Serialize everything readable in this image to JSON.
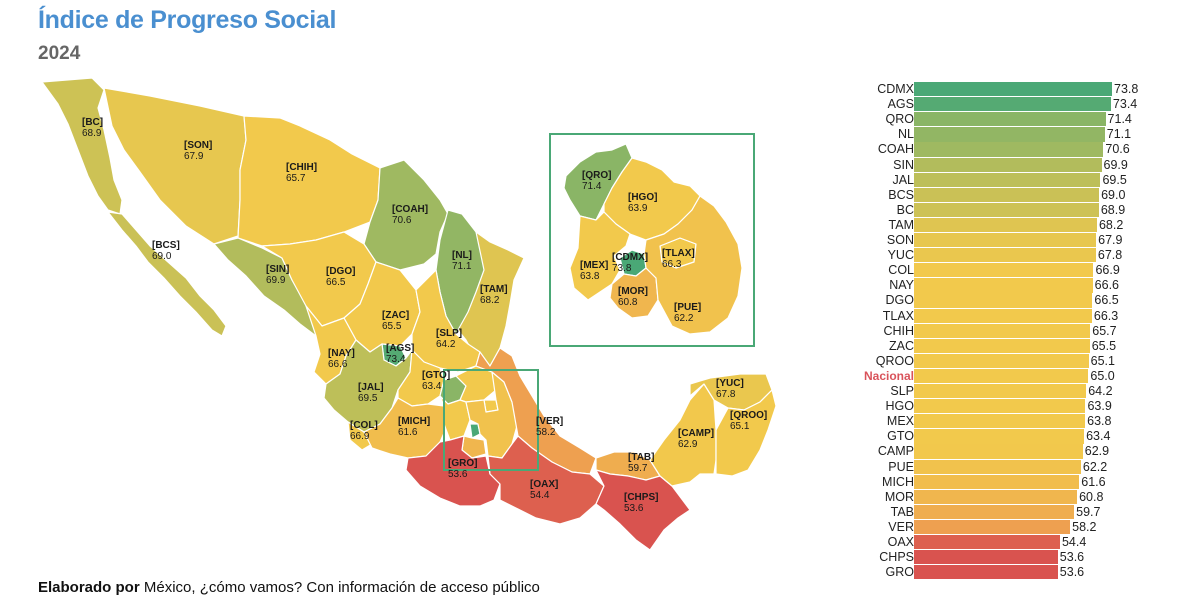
{
  "header": {
    "title": "Índice de Progreso Social",
    "year": "2024"
  },
  "footer": {
    "bold": "Elaborado por",
    "text": " México, ¿cómo vamos? Con información de acceso público"
  },
  "colors": {
    "inset_border": "#4aa876",
    "national_label": "#d9535b",
    "state_border": "#ffffff"
  },
  "map": {
    "states": [
      {
        "code": "BC",
        "value": "68.9"
      },
      {
        "code": "BCS",
        "value": "69.0"
      },
      {
        "code": "SON",
        "value": "67.9"
      },
      {
        "code": "CHIH",
        "value": "65.7"
      },
      {
        "code": "COAH",
        "value": "70.6"
      },
      {
        "code": "NL",
        "value": "71.1"
      },
      {
        "code": "TAM",
        "value": "68.2"
      },
      {
        "code": "SIN",
        "value": "69.9"
      },
      {
        "code": "DGO",
        "value": "66.5"
      },
      {
        "code": "ZAC",
        "value": "65.5"
      },
      {
        "code": "SLP",
        "value": "64.2"
      },
      {
        "code": "NAY",
        "value": "66.6"
      },
      {
        "code": "AGS",
        "value": "73.4"
      },
      {
        "code": "JAL",
        "value": "69.5"
      },
      {
        "code": "GTO",
        "value": "63.4"
      },
      {
        "code": "COL",
        "value": "66.9"
      },
      {
        "code": "MICH",
        "value": "61.6"
      },
      {
        "code": "VER",
        "value": "58.2"
      },
      {
        "code": "GRO",
        "value": "53.6"
      },
      {
        "code": "OAX",
        "value": "54.4"
      },
      {
        "code": "TAB",
        "value": "59.7"
      },
      {
        "code": "CHPS",
        "value": "53.6"
      },
      {
        "code": "CAMP",
        "value": "62.9"
      },
      {
        "code": "YUC",
        "value": "67.8"
      },
      {
        "code": "QROO",
        "value": "65.1"
      }
    ],
    "inset_states": [
      {
        "code": "QRO",
        "value": "71.4"
      },
      {
        "code": "HGO",
        "value": "63.9"
      },
      {
        "code": "MEX",
        "value": "63.8"
      },
      {
        "code": "CDMX",
        "value": "73.8"
      },
      {
        "code": "TLAX",
        "value": "66.3"
      },
      {
        "code": "MOR",
        "value": "60.8"
      },
      {
        "code": "PUE",
        "value": "62.2"
      }
    ]
  },
  "chart_data": {
    "type": "bar",
    "orientation": "horizontal",
    "xlim": [
      0,
      73.8
    ],
    "highlight_category": "Nacional",
    "categories": [
      "CDMX",
      "AGS",
      "QRO",
      "NL",
      "COAH",
      "SIN",
      "JAL",
      "BCS",
      "BC",
      "TAM",
      "SON",
      "YUC",
      "COL",
      "NAY",
      "DGO",
      "TLAX",
      "CHIH",
      "ZAC",
      "QROO",
      "Nacional",
      "SLP",
      "HGO",
      "MEX",
      "GTO",
      "CAMP",
      "PUE",
      "MICH",
      "MOR",
      "TAB",
      "VER",
      "OAX",
      "CHPS",
      "GRO"
    ],
    "values": [
      73.8,
      73.4,
      71.4,
      71.1,
      70.6,
      69.9,
      69.5,
      69.0,
      68.9,
      68.2,
      67.9,
      67.8,
      66.9,
      66.6,
      66.5,
      66.3,
      65.7,
      65.5,
      65.1,
      65.0,
      64.2,
      63.9,
      63.8,
      63.4,
      62.9,
      62.2,
      61.6,
      60.8,
      59.7,
      58.2,
      54.4,
      53.6,
      53.6
    ],
    "value_labels": [
      "73.8",
      "73.4",
      "71.4",
      "71.1",
      "70.6",
      "69.9",
      "69.5",
      "69.0",
      "68.9",
      "68.2",
      "67.9",
      "67.8",
      "66.9",
      "66.6",
      "66.5",
      "66.3",
      "65.7",
      "65.5",
      "65.1",
      "65.0",
      "64.2",
      "63.9",
      "63.8",
      "63.4",
      "62.9",
      "62.2",
      "61.6",
      "60.8",
      "59.7",
      "58.2",
      "54.4",
      "53.6",
      "53.6"
    ],
    "color_scale": {
      "low": "#d9534f",
      "mid": "#f2c94c",
      "high": "#4aa876"
    }
  }
}
